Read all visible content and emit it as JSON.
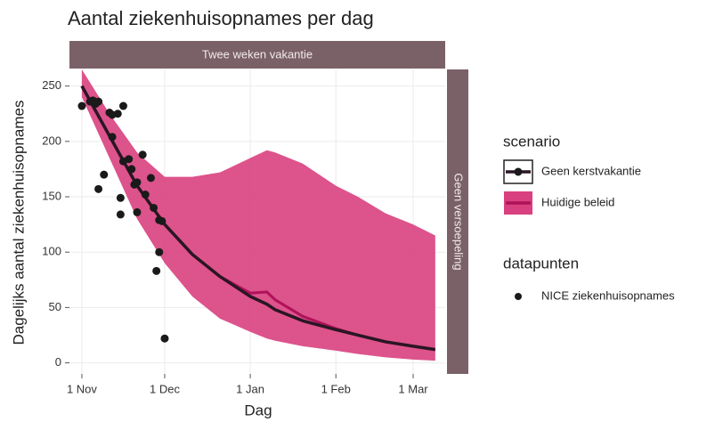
{
  "chart_data": {
    "type": "line",
    "title": "Aantal ziekenhuisopnames per dag",
    "x_label": "Dag",
    "y_label": "Dagelijks aantal ziekenhuisopnames",
    "strip_top": "Twee weken vakantie",
    "strip_right": "Geen versoepeling",
    "xlim": [
      -4.5,
      131.6
    ],
    "ylim": [
      -10,
      265
    ],
    "xticks": [
      {
        "value": 0,
        "label": "1 Nov"
      },
      {
        "value": 30,
        "label": "1 Dec"
      },
      {
        "value": 61,
        "label": "1 Jan"
      },
      {
        "value": 92,
        "label": "1 Feb"
      },
      {
        "value": 120,
        "label": "1 Mar"
      }
    ],
    "yticks": [
      0,
      50,
      100,
      150,
      200,
      250
    ],
    "grid": true,
    "legend_title": "scenario",
    "x": [
      0,
      10,
      20,
      30,
      40,
      50,
      61,
      67,
      70,
      80,
      92,
      100,
      110,
      120,
      128
    ],
    "series": [
      {
        "name": "Geen kerstvakantie",
        "color": "#2a1624",
        "values": [
          250,
          205,
          160,
          125,
          98,
          78,
          60,
          53,
          48,
          38,
          30,
          25,
          19,
          15,
          12
        ]
      },
      {
        "name": "Huidige beleid",
        "color": "#b0125a",
        "band_color": "#d9407f",
        "values": [
          250,
          205,
          160,
          125,
          98,
          78,
          63,
          64,
          57,
          42,
          31,
          25,
          19,
          15,
          12
        ],
        "upper": [
          265,
          225,
          190,
          168,
          168,
          172,
          185,
          192,
          190,
          180,
          160,
          150,
          135,
          125,
          115
        ],
        "lower": [
          240,
          185,
          130,
          90,
          60,
          40,
          28,
          22,
          20,
          15,
          11,
          8,
          5,
          3,
          2
        ]
      }
    ],
    "points": {
      "legend_title": "datapunten",
      "name": "NICE ziekenhuisopnames",
      "color": "#1a1a1a",
      "x": [
        0,
        3,
        5,
        6,
        4,
        6,
        8,
        10,
        11,
        13,
        15,
        11,
        15,
        17,
        18,
        20,
        22,
        19,
        14,
        14,
        20,
        23,
        25,
        26,
        28,
        29,
        28,
        27,
        30
      ],
      "values": [
        232,
        236,
        234,
        236,
        237,
        157,
        170,
        226,
        224,
        225,
        232,
        204,
        182,
        184,
        175,
        163,
        188,
        161,
        149,
        134,
        136,
        152,
        167,
        140,
        129,
        128,
        100,
        83,
        22
      ]
    }
  }
}
